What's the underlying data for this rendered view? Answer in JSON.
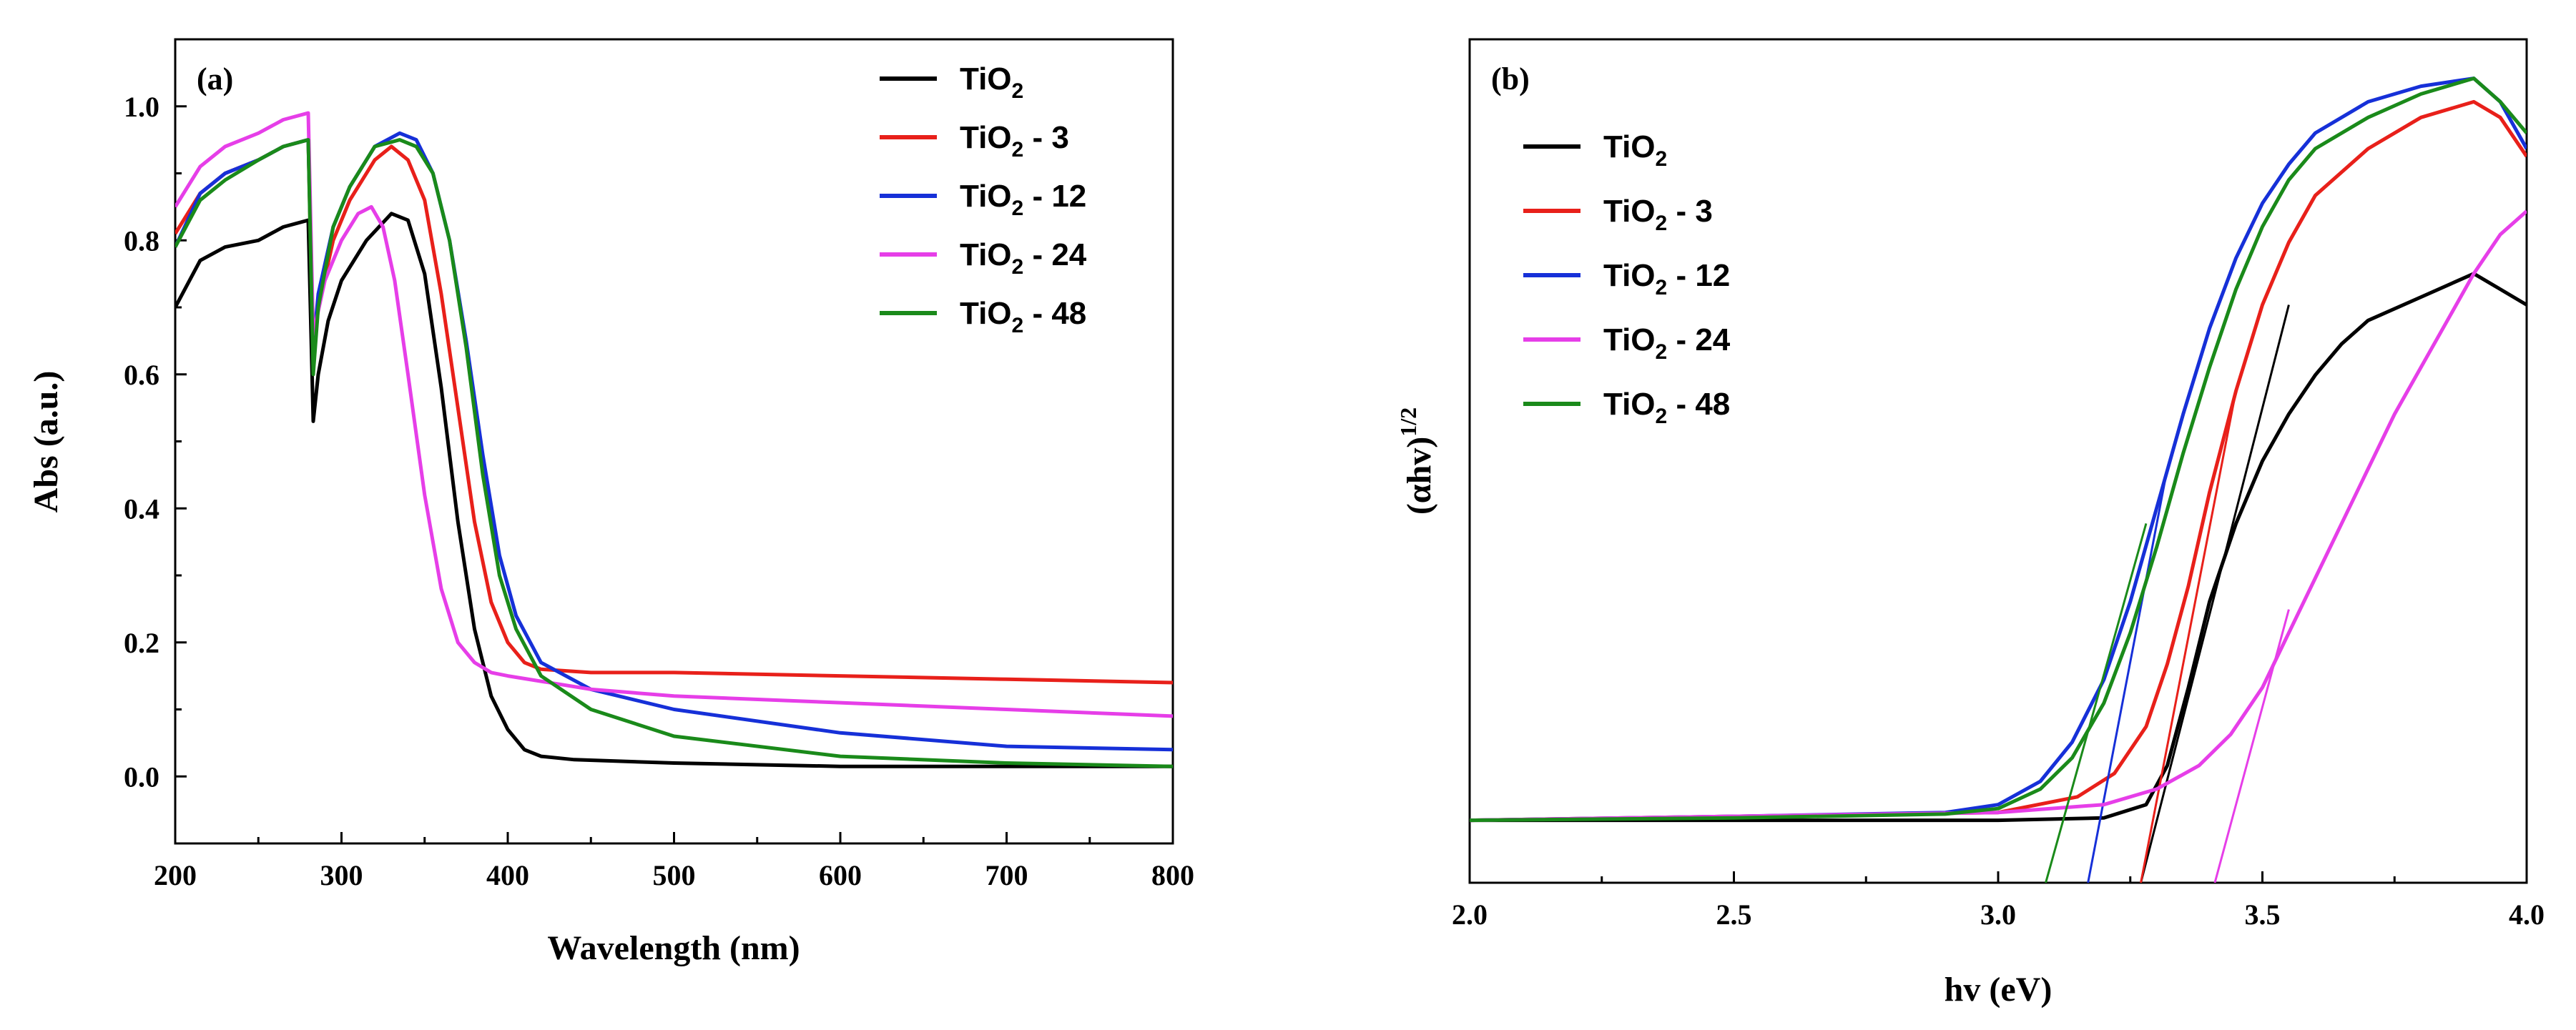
{
  "chart_data": [
    {
      "type": "line",
      "panel_label": "(a)",
      "xlabel": "Wavelength (nm)",
      "ylabel": "Abs (a.u.)",
      "xlim": [
        200,
        800
      ],
      "ylim": [
        -0.1,
        1.1
      ],
      "x_ticks": [
        200,
        300,
        400,
        500,
        600,
        700,
        800
      ],
      "x_tick_labels": [
        "200",
        "300",
        "400",
        "500",
        "600",
        "700",
        "800"
      ],
      "y_ticks": [
        0.0,
        0.2,
        0.4,
        0.6,
        0.8,
        1.0
      ],
      "y_tick_labels": [
        "0.0",
        "0.2",
        "0.4",
        "0.6",
        "0.8",
        "1.0"
      ],
      "legend_position": "top-right",
      "series": [
        {
          "name": "TiO2",
          "legend_base": "TiO",
          "legend_sub": "2",
          "legend_suffix": "",
          "color": "#000000",
          "x": [
            200,
            215,
            230,
            250,
            265,
            280,
            283,
            286,
            292,
            300,
            315,
            330,
            340,
            350,
            360,
            370,
            380,
            390,
            400,
            410,
            420,
            440,
            500,
            600,
            700,
            800
          ],
          "y": [
            0.7,
            0.77,
            0.79,
            0.8,
            0.82,
            0.83,
            0.53,
            0.6,
            0.68,
            0.74,
            0.8,
            0.84,
            0.83,
            0.75,
            0.58,
            0.38,
            0.22,
            0.12,
            0.07,
            0.04,
            0.03,
            0.025,
            0.02,
            0.015,
            0.015,
            0.015
          ]
        },
        {
          "name": "TiO2 - 3",
          "legend_base": "TiO",
          "legend_sub": "2",
          "legend_suffix": " - 3",
          "color": "#e8201a",
          "x": [
            200,
            215,
            230,
            250,
            265,
            280,
            283,
            286,
            295,
            305,
            320,
            330,
            340,
            350,
            360,
            370,
            380,
            390,
            400,
            410,
            420,
            450,
            500,
            600,
            700,
            800
          ],
          "y": [
            0.81,
            0.87,
            0.9,
            0.92,
            0.94,
            0.95,
            0.62,
            0.7,
            0.8,
            0.86,
            0.92,
            0.94,
            0.92,
            0.86,
            0.72,
            0.55,
            0.38,
            0.26,
            0.2,
            0.17,
            0.16,
            0.155,
            0.155,
            0.15,
            0.145,
            0.14
          ]
        },
        {
          "name": "TiO2 - 12",
          "legend_base": "TiO",
          "legend_sub": "2",
          "legend_suffix": " - 12",
          "color": "#1630d8",
          "x": [
            200,
            215,
            230,
            250,
            265,
            280,
            283,
            286,
            295,
            305,
            320,
            335,
            345,
            355,
            365,
            375,
            385,
            395,
            405,
            420,
            450,
            500,
            600,
            700,
            800
          ],
          "y": [
            0.79,
            0.87,
            0.9,
            0.92,
            0.94,
            0.95,
            0.64,
            0.72,
            0.82,
            0.88,
            0.94,
            0.96,
            0.95,
            0.9,
            0.8,
            0.65,
            0.48,
            0.33,
            0.24,
            0.17,
            0.13,
            0.1,
            0.065,
            0.045,
            0.04
          ]
        },
        {
          "name": "TiO2 - 24",
          "legend_base": "TiO",
          "legend_sub": "2",
          "legend_suffix": " - 24",
          "color": "#e63ee8",
          "x": [
            200,
            215,
            230,
            250,
            265,
            280,
            283,
            290,
            300,
            310,
            318,
            325,
            332,
            340,
            350,
            360,
            370,
            380,
            390,
            400,
            450,
            500,
            600,
            700,
            800
          ],
          "y": [
            0.85,
            0.91,
            0.94,
            0.96,
            0.98,
            0.99,
            0.66,
            0.74,
            0.8,
            0.84,
            0.85,
            0.82,
            0.74,
            0.6,
            0.42,
            0.28,
            0.2,
            0.17,
            0.155,
            0.15,
            0.13,
            0.12,
            0.11,
            0.1,
            0.09
          ]
        },
        {
          "name": "TiO2 - 48",
          "legend_base": "TiO",
          "legend_sub": "2",
          "legend_suffix": " - 48",
          "color": "#1a8a1a",
          "x": [
            200,
            215,
            230,
            250,
            265,
            280,
            283,
            286,
            295,
            305,
            320,
            335,
            345,
            355,
            365,
            375,
            385,
            395,
            405,
            420,
            450,
            500,
            600,
            700,
            800
          ],
          "y": [
            0.79,
            0.86,
            0.89,
            0.92,
            0.94,
            0.95,
            0.6,
            0.7,
            0.82,
            0.88,
            0.94,
            0.95,
            0.94,
            0.9,
            0.8,
            0.64,
            0.45,
            0.3,
            0.22,
            0.15,
            0.1,
            0.06,
            0.03,
            0.02,
            0.015
          ]
        }
      ]
    },
    {
      "type": "line",
      "panel_label": "(b)",
      "xlabel": "hv (eV)",
      "ylabel_base": "(αhv)",
      "ylabel_sup": "1/2",
      "xlim": [
        2.0,
        4.0
      ],
      "ylim": [
        -0.08,
        1.0
      ],
      "x_ticks": [
        2.0,
        2.5,
        3.0,
        3.5,
        4.0
      ],
      "x_tick_labels": [
        "2.0",
        "2.5",
        "3.0",
        "3.5",
        "4.0"
      ],
      "legend_position": "top-left",
      "series": [
        {
          "name": "TiO2",
          "legend_base": "TiO",
          "legend_sub": "2",
          "legend_suffix": "",
          "color": "#000000",
          "x": [
            2.0,
            2.5,
            3.0,
            3.2,
            3.28,
            3.32,
            3.36,
            3.4,
            3.45,
            3.5,
            3.55,
            3.6,
            3.65,
            3.7,
            3.8,
            3.9,
            3.95,
            4.0
          ],
          "y": [
            0.0,
            0.0,
            0.0,
            0.003,
            0.02,
            0.07,
            0.17,
            0.28,
            0.38,
            0.46,
            0.52,
            0.57,
            0.61,
            0.64,
            0.67,
            0.7,
            0.68,
            0.66
          ],
          "tangent": {
            "x": [
              3.27,
              3.55
            ],
            "y": [
              -0.08,
              0.66
            ]
          }
        },
        {
          "name": "TiO2 - 3",
          "legend_base": "TiO",
          "legend_sub": "2",
          "legend_suffix": " - 3",
          "color": "#e8201a",
          "x": [
            2.0,
            2.5,
            3.0,
            3.15,
            3.22,
            3.28,
            3.32,
            3.36,
            3.4,
            3.45,
            3.5,
            3.55,
            3.6,
            3.7,
            3.8,
            3.9,
            3.95,
            4.0
          ],
          "y": [
            0.0,
            0.005,
            0.01,
            0.03,
            0.06,
            0.12,
            0.2,
            0.3,
            0.42,
            0.55,
            0.66,
            0.74,
            0.8,
            0.86,
            0.9,
            0.92,
            0.9,
            0.85
          ],
          "tangent": {
            "x": [
              3.27,
              3.45
            ],
            "y": [
              -0.08,
              0.55
            ]
          }
        },
        {
          "name": "TiO2 - 12",
          "legend_base": "TiO",
          "legend_sub": "2",
          "legend_suffix": " - 12",
          "color": "#1630d8",
          "x": [
            2.0,
            2.5,
            2.9,
            3.0,
            3.08,
            3.14,
            3.2,
            3.25,
            3.3,
            3.35,
            3.4,
            3.45,
            3.5,
            3.55,
            3.6,
            3.7,
            3.8,
            3.9,
            3.95,
            4.0
          ],
          "y": [
            0.0,
            0.005,
            0.01,
            0.02,
            0.05,
            0.1,
            0.18,
            0.28,
            0.4,
            0.52,
            0.63,
            0.72,
            0.79,
            0.84,
            0.88,
            0.92,
            0.94,
            0.95,
            0.92,
            0.86
          ],
          "tangent": {
            "x": [
              3.17,
              3.32
            ],
            "y": [
              -0.08,
              0.45
            ]
          }
        },
        {
          "name": "TiO2 - 24",
          "legend_base": "TiO",
          "legend_sub": "2",
          "legend_suffix": " - 24",
          "color": "#e63ee8",
          "x": [
            2.0,
            2.5,
            3.0,
            3.2,
            3.3,
            3.38,
            3.44,
            3.5,
            3.55,
            3.6,
            3.65,
            3.7,
            3.75,
            3.8,
            3.85,
            3.9,
            3.95,
            4.0
          ],
          "y": [
            0.0,
            0.005,
            0.01,
            0.02,
            0.04,
            0.07,
            0.11,
            0.17,
            0.24,
            0.31,
            0.38,
            0.45,
            0.52,
            0.58,
            0.64,
            0.7,
            0.75,
            0.78
          ],
          "tangent": {
            "x": [
              3.41,
              3.55
            ],
            "y": [
              -0.08,
              0.27
            ]
          }
        },
        {
          "name": "TiO2 - 48",
          "legend_base": "TiO",
          "legend_sub": "2",
          "legend_suffix": " - 48",
          "color": "#1a8a1a",
          "x": [
            2.0,
            2.5,
            2.9,
            3.0,
            3.08,
            3.14,
            3.2,
            3.25,
            3.3,
            3.35,
            3.4,
            3.45,
            3.5,
            3.55,
            3.6,
            3.7,
            3.8,
            3.9,
            3.95,
            4.0
          ],
          "y": [
            0.0,
            0.003,
            0.008,
            0.015,
            0.04,
            0.08,
            0.15,
            0.24,
            0.35,
            0.47,
            0.58,
            0.68,
            0.76,
            0.82,
            0.86,
            0.9,
            0.93,
            0.95,
            0.92,
            0.88
          ],
          "tangent": {
            "x": [
              3.09,
              3.28
            ],
            "y": [
              -0.08,
              0.38
            ]
          }
        }
      ]
    }
  ]
}
